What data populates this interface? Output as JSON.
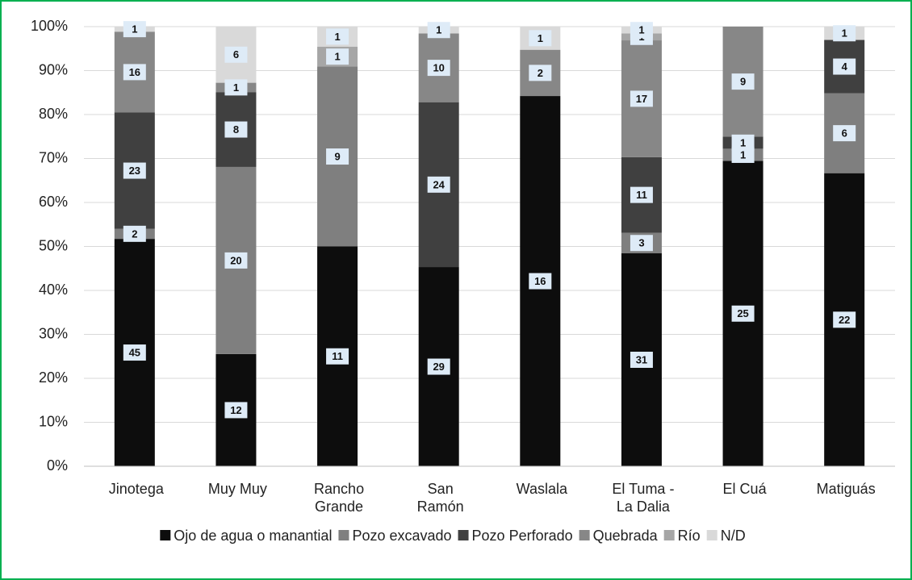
{
  "chart_data": {
    "type": "bar",
    "stacking": "percent",
    "categories": [
      "Jinotega",
      "Muy Muy",
      "Rancho Grande",
      "San Ramón",
      "Waslala",
      "El Tuma - La Dalia",
      "El Cuá",
      "Matiguás"
    ],
    "series": [
      {
        "name": "Ojo de agua o manantial",
        "color": "#0d0d0d",
        "values": [
          45,
          12,
          11,
          29,
          16,
          31,
          25,
          22
        ]
      },
      {
        "name": "Pozo excavado",
        "color": "#7f7f7f",
        "values": [
          2,
          20,
          9,
          null,
          null,
          3,
          1,
          6
        ]
      },
      {
        "name": "Pozo Perforado",
        "color": "#404040",
        "values": [
          23,
          8,
          null,
          24,
          null,
          11,
          1,
          4
        ]
      },
      {
        "name": "Quebrada",
        "color": "#878787",
        "values": [
          16,
          1,
          null,
          10,
          2,
          17,
          9,
          null
        ]
      },
      {
        "name": "Río",
        "color": "#a6a6a6",
        "values": [
          null,
          null,
          1,
          null,
          null,
          1,
          null,
          null
        ]
      },
      {
        "name": "N/D",
        "color": "#d9d9d9",
        "values": [
          1,
          6,
          1,
          1,
          1,
          1,
          null,
          1
        ]
      }
    ],
    "ylim": [
      0,
      100
    ],
    "yticks": [
      {
        "value": 0,
        "label": "0%"
      },
      {
        "value": 10,
        "label": "10%"
      },
      {
        "value": 20,
        "label": "20%"
      },
      {
        "value": 30,
        "label": "30%"
      },
      {
        "value": 40,
        "label": "40%"
      },
      {
        "value": 50,
        "label": "50%"
      },
      {
        "value": 60,
        "label": "60%"
      },
      {
        "value": 70,
        "label": "70%"
      },
      {
        "value": 80,
        "label": "80%"
      },
      {
        "value": 90,
        "label": "90%"
      },
      {
        "value": 100,
        "label": "100%"
      }
    ],
    "grid": true,
    "legend": "bottom"
  }
}
